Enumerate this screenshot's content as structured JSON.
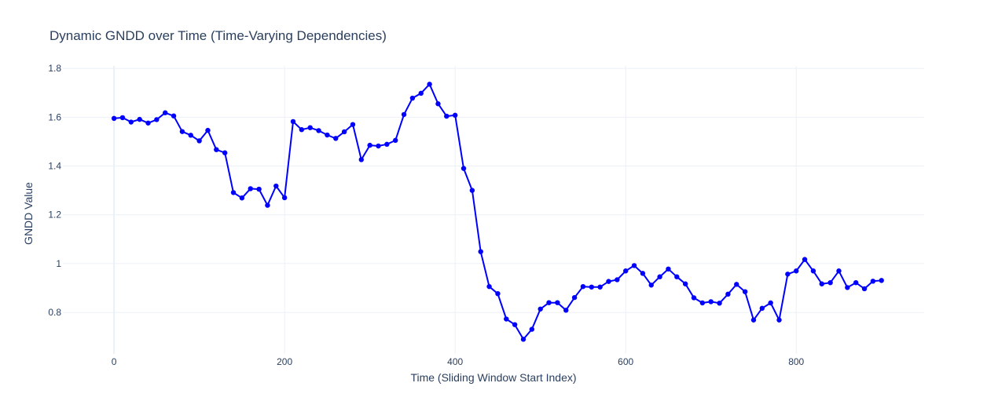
{
  "chart_data": {
    "type": "line",
    "title": "Dynamic GNDD over Time (Time-Varying Dependencies)",
    "xlabel": "Time (Sliding Window Start Index)",
    "ylabel": "GNDD Value",
    "xlim": [
      -60,
      950
    ],
    "ylim": [
      0.63,
      1.81
    ],
    "xticks": [
      0,
      200,
      400,
      600,
      800
    ],
    "xtick_labels": [
      "0",
      "200",
      "400",
      "600",
      "800"
    ],
    "yticks": [
      0.8,
      1.0,
      1.2,
      1.4,
      1.6,
      1.8
    ],
    "ytick_labels": [
      "0.8",
      "1",
      "1.2",
      "1.4",
      "1.6",
      "1.8"
    ],
    "grid": true,
    "color": "#0000ff",
    "mode": "lines+markers",
    "x": [
      0,
      10,
      20,
      30,
      40,
      50,
      60,
      70,
      80,
      90,
      100,
      110,
      120,
      130,
      140,
      150,
      160,
      170,
      180,
      190,
      200,
      210,
      220,
      230,
      240,
      250,
      260,
      270,
      280,
      290,
      300,
      310,
      320,
      330,
      340,
      350,
      360,
      370,
      380,
      390,
      400,
      410,
      420,
      430,
      440,
      450,
      460,
      470,
      480,
      490,
      500,
      510,
      520,
      530,
      540,
      550,
      560,
      570,
      580,
      590,
      600,
      610,
      620,
      630,
      640,
      650,
      660,
      670,
      680,
      690,
      700,
      710,
      720,
      730,
      740,
      750,
      760,
      770,
      780,
      790,
      800,
      810,
      820,
      830,
      840,
      850,
      860,
      870,
      880,
      890,
      900
    ],
    "y": [
      1.595,
      1.598,
      1.58,
      1.591,
      1.576,
      1.59,
      1.618,
      1.605,
      1.541,
      1.526,
      1.503,
      1.546,
      1.467,
      1.454,
      1.291,
      1.269,
      1.307,
      1.305,
      1.239,
      1.318,
      1.27,
      1.582,
      1.549,
      1.557,
      1.545,
      1.527,
      1.513,
      1.54,
      1.57,
      1.426,
      1.485,
      1.482,
      1.489,
      1.505,
      1.611,
      1.678,
      1.698,
      1.735,
      1.655,
      1.604,
      1.608,
      1.39,
      1.3,
      1.049,
      0.906,
      0.877,
      0.773,
      0.75,
      0.69,
      0.731,
      0.814,
      0.84,
      0.84,
      0.809,
      0.861,
      0.906,
      0.904,
      0.904,
      0.927,
      0.934,
      0.97,
      0.992,
      0.96,
      0.912,
      0.946,
      0.978,
      0.946,
      0.917,
      0.86,
      0.839,
      0.844,
      0.838,
      0.875,
      0.915,
      0.885,
      0.769,
      0.817,
      0.839,
      0.769,
      0.957,
      0.97,
      1.017,
      0.97,
      0.917,
      0.922,
      0.97,
      0.902,
      0.922,
      0.897,
      0.928,
      0.931
    ]
  }
}
